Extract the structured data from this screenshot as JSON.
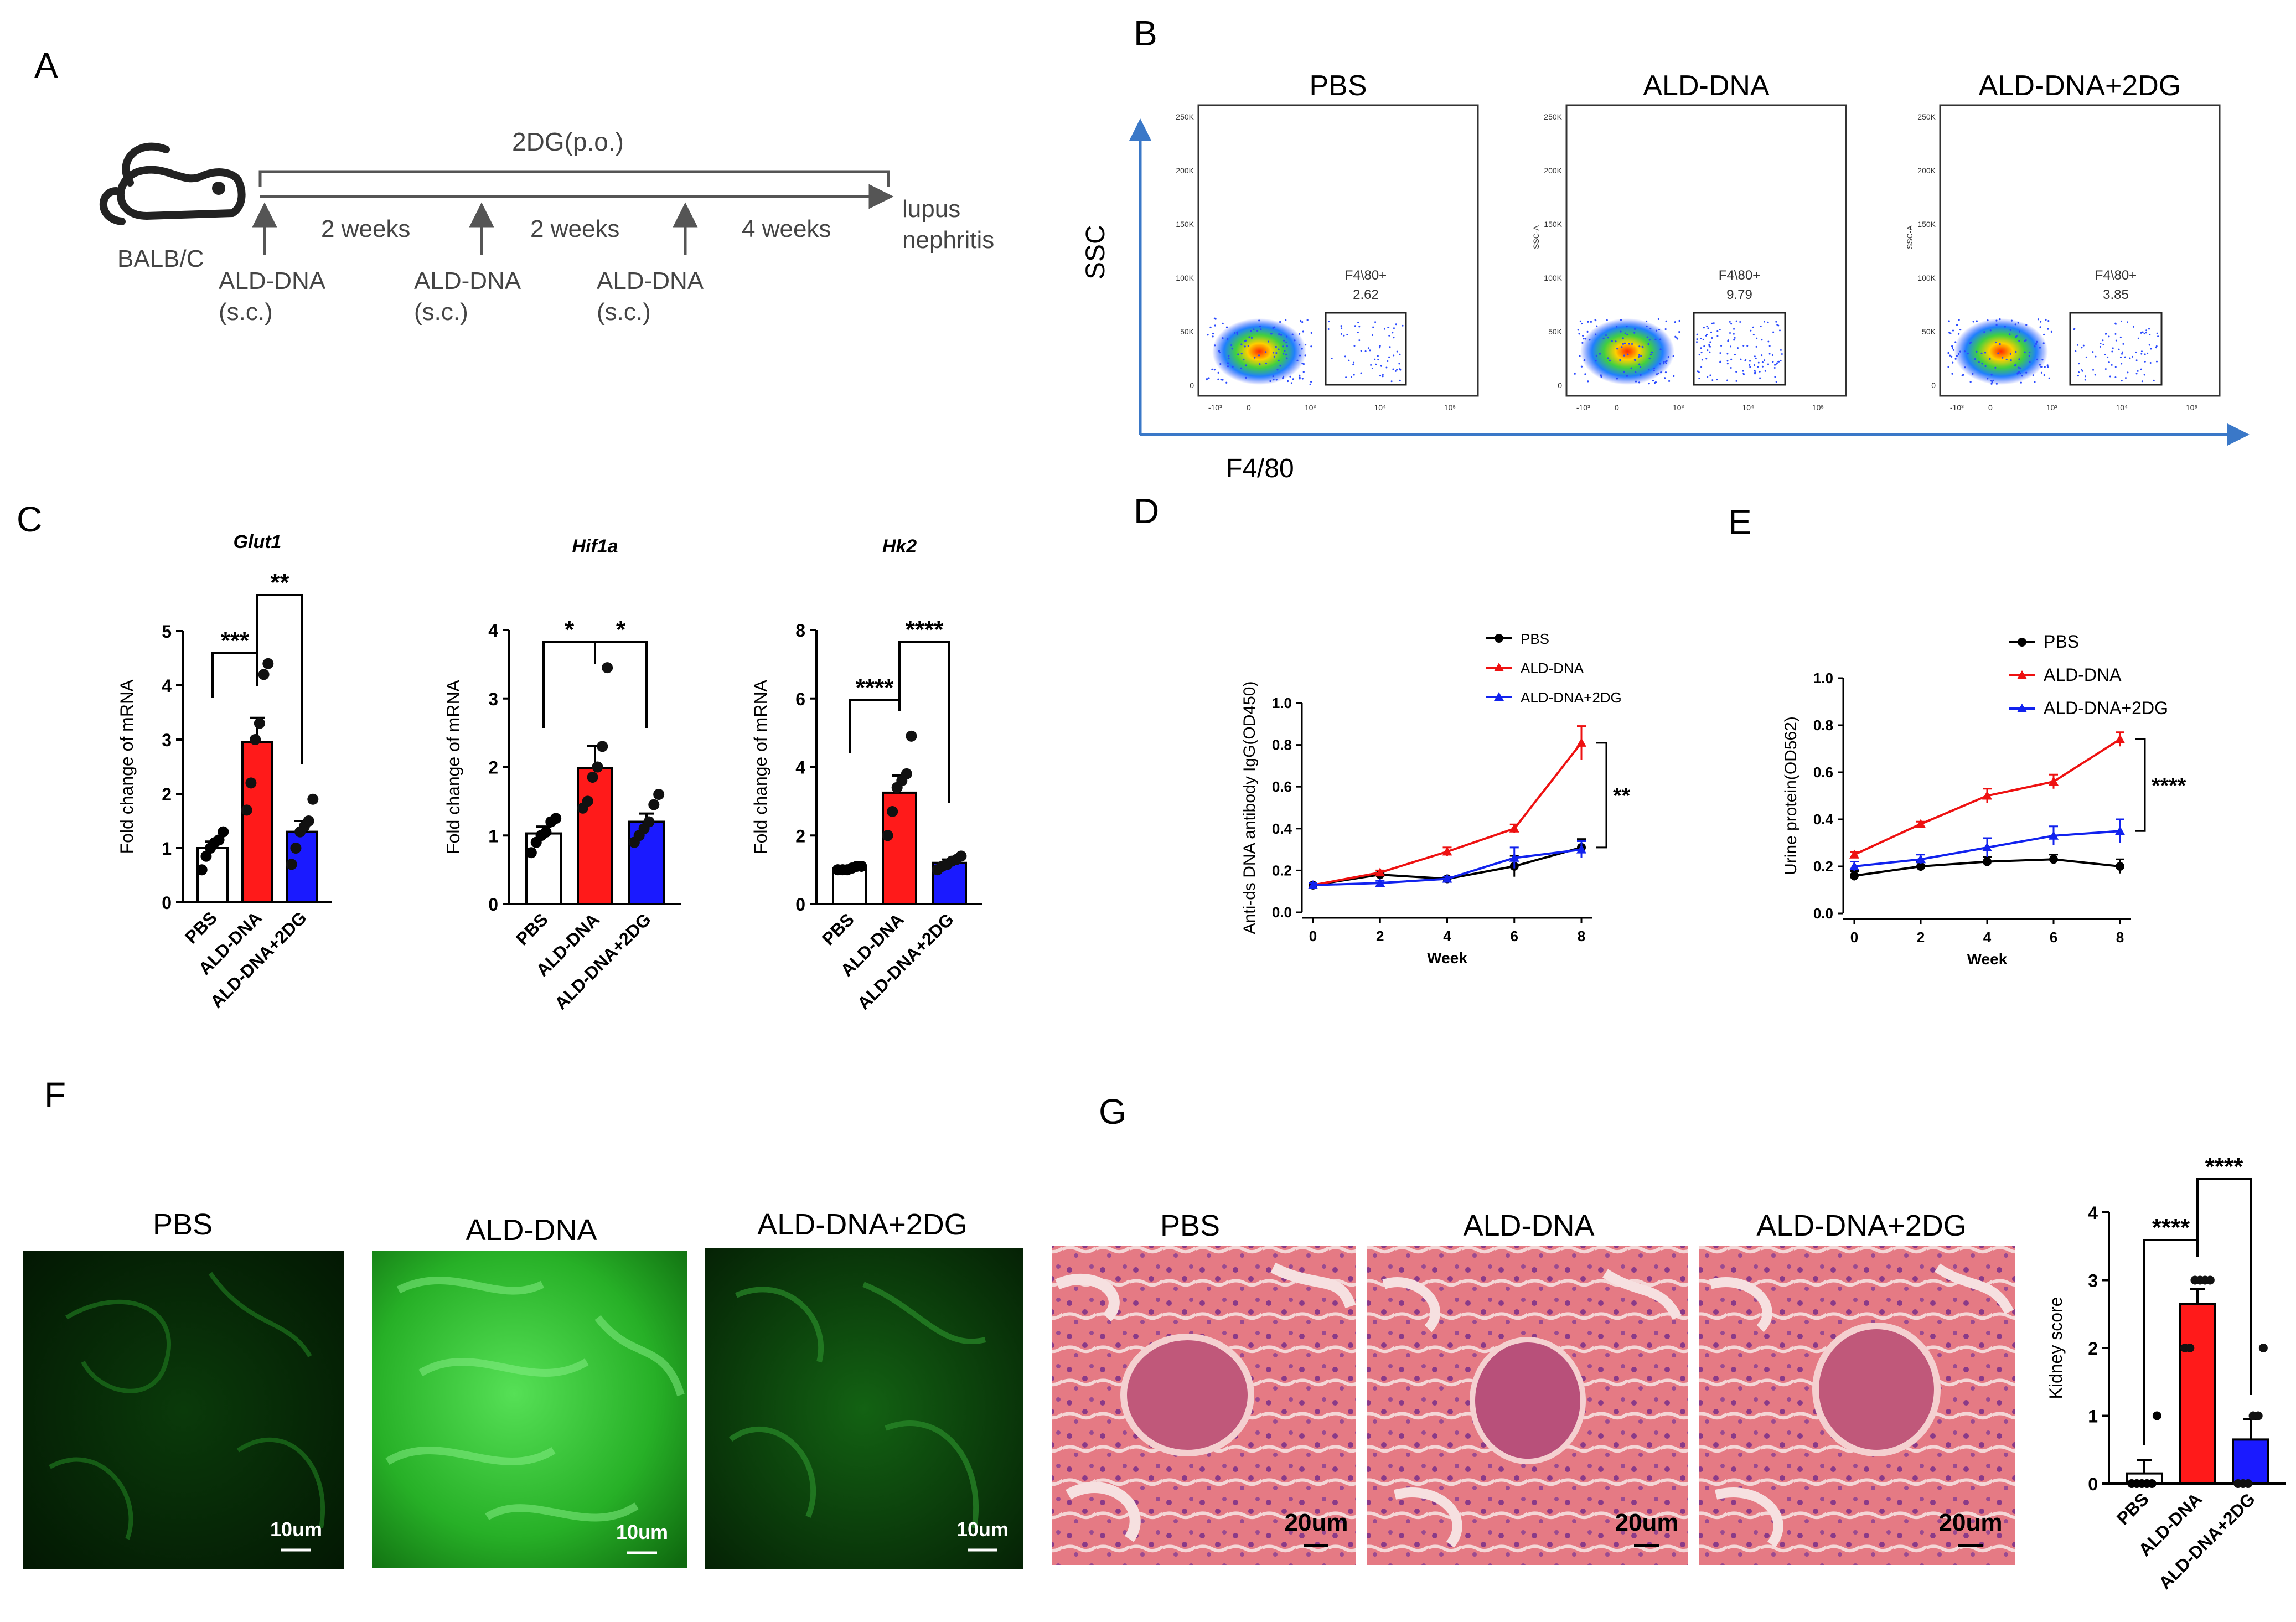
{
  "figure": {
    "panel_letters": [
      "A",
      "B",
      "C",
      "D",
      "E",
      "F",
      "G"
    ],
    "colors": {
      "pbs": "#000000",
      "ald": "#ee1111",
      "ald2dg": "#1122ee",
      "bar_pbs": "#ffffff",
      "bar_ald": "#ff1a1a",
      "bar_2dg": "#1a1aff",
      "flow_axis": "#3a78c8",
      "fluor": "#1d9a1d",
      "he": "#e0707a"
    }
  },
  "panel_a": {
    "treatment": "2DG(p.o.)",
    "mouse": "BALB/C",
    "intervals": [
      "2 weeks",
      "2 weeks",
      "4 weeks"
    ],
    "injection_label": "ALD-DNA",
    "injection_route": "(s.c.)",
    "endpoint_line1": "lupus",
    "endpoint_line2": "nephritis"
  },
  "panel_b": {
    "y_axis": "SSC",
    "x_axis": "F4/80",
    "plots": [
      {
        "title": "PBS",
        "gate_label": "F4\\80+",
        "gate_value": "2.62"
      },
      {
        "title": "ALD-DNA",
        "gate_label": "F4\\80+",
        "gate_value": "9.79"
      },
      {
        "title": "ALD-DNA+2DG",
        "gate_label": "F4\\80+",
        "gate_value": "3.85"
      }
    ],
    "y_ticks": [
      "250K",
      "200K",
      "150K",
      "100K",
      "50K",
      "0"
    ],
    "x_ticks": [
      "-10³",
      "0",
      "10³",
      "10⁴",
      "10⁵"
    ],
    "ssc_a": "SSC-A"
  },
  "chart_data": [
    {
      "type": "bar",
      "title": "Glut1",
      "ylabel": "Fold change of mRNA",
      "categories": [
        "PBS",
        "ALD-DNA",
        "ALD-DNA+2DG"
      ],
      "values": [
        1.0,
        2.95,
        1.3
      ],
      "sem": [
        0.12,
        0.45,
        0.2
      ],
      "points": [
        [
          0.6,
          0.85,
          1.0,
          1.1,
          1.15,
          1.3
        ],
        [
          1.7,
          2.2,
          3.0,
          3.3,
          4.2,
          4.4
        ],
        [
          0.7,
          1.0,
          1.3,
          1.4,
          1.5,
          1.9
        ]
      ],
      "ylim": [
        0,
        5
      ],
      "yticks": [
        0,
        1,
        2,
        3,
        4,
        5
      ],
      "significance": [
        {
          "pair": [
            0,
            1
          ],
          "label": "***"
        },
        {
          "pair": [
            1,
            2
          ],
          "label": "**"
        }
      ]
    },
    {
      "type": "bar",
      "title": "Hif1a",
      "ylabel": "Fold change of mRNA",
      "categories": [
        "PBS",
        "ALD-DNA",
        "ALD-DNA+2DG"
      ],
      "values": [
        1.03,
        1.98,
        1.2
      ],
      "sem": [
        0.1,
        0.33,
        0.12
      ],
      "points": [
        [
          0.75,
          0.9,
          1.0,
          1.05,
          1.2,
          1.25
        ],
        [
          1.4,
          1.5,
          1.85,
          2.0,
          2.3,
          3.45
        ],
        [
          0.9,
          1.0,
          1.1,
          1.2,
          1.45,
          1.6
        ]
      ],
      "ylim": [
        0,
        4
      ],
      "yticks": [
        0,
        1,
        2,
        3,
        4
      ],
      "significance": [
        {
          "pair": [
            0,
            1
          ],
          "label": "*"
        },
        {
          "pair": [
            1,
            2
          ],
          "label": "*"
        }
      ]
    },
    {
      "type": "bar",
      "title": "Hk2",
      "ylabel": "Fold change of mRNA",
      "categories": [
        "PBS",
        "ALD-DNA",
        "ALD-DNA+2DG"
      ],
      "values": [
        1.05,
        3.25,
        1.2
      ],
      "sem": [
        0.05,
        0.5,
        0.1
      ],
      "points": [
        [
          1.0,
          1.0,
          1.0,
          1.05,
          1.1,
          1.1
        ],
        [
          2.0,
          2.7,
          3.4,
          3.6,
          3.8,
          4.9
        ],
        [
          1.0,
          1.1,
          1.15,
          1.25,
          1.3,
          1.4
        ]
      ],
      "ylim": [
        0,
        8
      ],
      "yticks": [
        0,
        2,
        4,
        6,
        8
      ],
      "significance": [
        {
          "pair": [
            0,
            1
          ],
          "label": "****"
        },
        {
          "pair": [
            1,
            2
          ],
          "label": "****"
        }
      ]
    },
    {
      "type": "line",
      "title": "",
      "xlabel": "Week",
      "ylabel": "Anti-ds DNA antibody  IgG(OD450)",
      "x": [
        0,
        2,
        4,
        6,
        8
      ],
      "xticks": [
        0,
        2,
        4,
        6,
        8
      ],
      "ylim": [
        0,
        1.0
      ],
      "yticks": [
        "0.0",
        "0.2",
        "0.4",
        "0.6",
        "0.8",
        "1.0"
      ],
      "series": [
        {
          "name": "PBS",
          "values": [
            0.13,
            0.18,
            0.16,
            0.22,
            0.31
          ],
          "err": [
            0.01,
            0.01,
            0.01,
            0.05,
            0.04
          ]
        },
        {
          "name": "ALD-DNA",
          "values": [
            0.13,
            0.19,
            0.29,
            0.4,
            0.81
          ],
          "err": [
            0.01,
            0.01,
            0.02,
            0.02,
            0.08
          ]
        },
        {
          "name": "ALD-DNA+2DG",
          "values": [
            0.13,
            0.14,
            0.16,
            0.26,
            0.3
          ],
          "err": [
            0.01,
            0.01,
            0.01,
            0.05,
            0.04
          ]
        }
      ],
      "significance": "**"
    },
    {
      "type": "line",
      "title": "",
      "xlabel": "Week",
      "ylabel": "Urine protein(OD562)",
      "x": [
        0,
        2,
        4,
        6,
        8
      ],
      "xticks": [
        0,
        2,
        4,
        6,
        8
      ],
      "ylim": [
        0,
        1.0
      ],
      "yticks": [
        "0.0",
        "0.2",
        "0.4",
        "0.6",
        "0.8",
        "1.0"
      ],
      "series": [
        {
          "name": "PBS",
          "values": [
            0.16,
            0.2,
            0.22,
            0.23,
            0.2
          ],
          "err": [
            0.02,
            0.02,
            0.02,
            0.02,
            0.03
          ]
        },
        {
          "name": "ALD-DNA",
          "values": [
            0.25,
            0.38,
            0.5,
            0.56,
            0.74
          ],
          "err": [
            0.01,
            0.01,
            0.03,
            0.03,
            0.03
          ]
        },
        {
          "name": "ALD-DNA+2DG",
          "values": [
            0.2,
            0.23,
            0.28,
            0.33,
            0.35
          ],
          "err": [
            0.02,
            0.02,
            0.04,
            0.04,
            0.05
          ]
        }
      ],
      "significance": "****"
    },
    {
      "type": "bar",
      "title": "",
      "ylabel": "Kidney score",
      "categories": [
        "PBS",
        "ALD-DNA",
        "ALD-DNA+2DG"
      ],
      "values": [
        0.15,
        2.65,
        0.65
      ],
      "sem": [
        0.2,
        0.22,
        0.3
      ],
      "points": [
        [
          0,
          0,
          0,
          0,
          0,
          1
        ],
        [
          2,
          2,
          3,
          3,
          3,
          3
        ],
        [
          0,
          0,
          0,
          1,
          1,
          2
        ]
      ],
      "ylim": [
        0,
        4
      ],
      "yticks": [
        0,
        1,
        2,
        3,
        4
      ],
      "significance": [
        {
          "pair": [
            0,
            1
          ],
          "label": "****"
        },
        {
          "pair": [
            1,
            2
          ],
          "label": "****"
        }
      ]
    }
  ],
  "panel_f": {
    "titles": [
      "PBS",
      "ALD-DNA",
      "ALD-DNA+2DG"
    ],
    "scale_bar": "10um"
  },
  "panel_g": {
    "titles": [
      "PBS",
      "ALD-DNA",
      "ALD-DNA+2DG"
    ],
    "scale_bar": "20um"
  }
}
